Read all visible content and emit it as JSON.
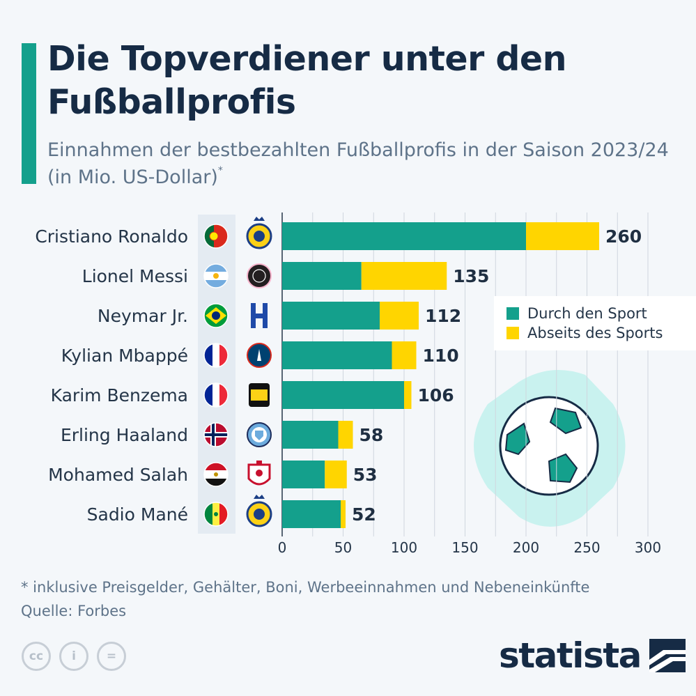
{
  "title": "Die Topverdiener unter den Fußballprofis",
  "subtitle": "Einnahmen der bestbezahlten Fußballprofis in der Saison 2023/24 (in Mio. US-Dollar)",
  "subtitle_marker": "*",
  "legend": {
    "sport": "Durch den Sport",
    "off_sport": "Abseits des Sports"
  },
  "colors": {
    "sport": "#14a08c",
    "off_sport": "#ffd500",
    "title": "#162b45",
    "ball_bg": "#c9f2ef"
  },
  "chart_data": {
    "type": "bar",
    "orientation": "horizontal",
    "stacked": true,
    "categories": [
      "Cristiano Ronaldo",
      "Lionel Messi",
      "Neymar Jr.",
      "Kylian Mbappé",
      "Karim Benzema",
      "Erling Haaland",
      "Mohamed Salah",
      "Sadio Mané"
    ],
    "series": [
      {
        "name": "Durch den Sport",
        "values": [
          200,
          65,
          80,
          90,
          100,
          46,
          35,
          48
        ]
      },
      {
        "name": "Abseits des Sports",
        "values": [
          60,
          70,
          32,
          20,
          6,
          12,
          18,
          4
        ]
      }
    ],
    "totals": [
      "260",
      "135",
      "112",
      "110",
      "106",
      "58",
      "53",
      "52"
    ],
    "xlim": [
      0,
      300
    ],
    "x_ticks": [
      "0",
      "50",
      "100",
      "150",
      "200",
      "250",
      "300"
    ],
    "grid": true,
    "legend_position": "right"
  },
  "players": [
    {
      "flag": "portugal-flag-icon",
      "club": "al-nassr-crest-icon"
    },
    {
      "flag": "argentina-flag-icon",
      "club": "inter-miami-crest-icon"
    },
    {
      "flag": "brazil-flag-icon",
      "club": "al-hilal-crest-icon"
    },
    {
      "flag": "france-flag-icon",
      "club": "psg-crest-icon"
    },
    {
      "flag": "france-flag-icon",
      "club": "al-ittihad-crest-icon"
    },
    {
      "flag": "norway-flag-icon",
      "club": "manchester-city-crest-icon"
    },
    {
      "flag": "egypt-flag-icon",
      "club": "liverpool-crest-icon"
    },
    {
      "flag": "senegal-flag-icon",
      "club": "al-nassr-crest-icon"
    }
  ],
  "footnote": "* inklusive Preisgelder, Gehälter, Boni, Werbeeinnahmen und Nebeneinkünfte",
  "source": "Quelle: Forbes",
  "cc_icons": [
    "cc",
    "i",
    "="
  ],
  "brand": "statista"
}
